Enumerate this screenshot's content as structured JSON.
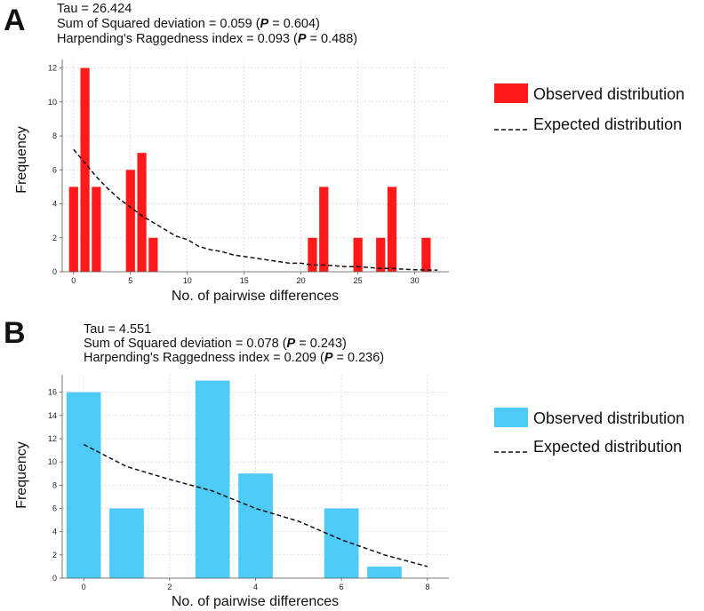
{
  "chart_data": [
    {
      "panel": "A",
      "type": "bar",
      "stats": {
        "tau": "Tau = 26.424",
        "ssd_prefix": "Sum of Squared deviation = 0.059 (",
        "ssd_p": "P",
        "ssd_suffix": " = 0.604)",
        "hri_prefix": "Harpending's Raggedness index = 0.093 (",
        "hri_p": "P",
        "hri_suffix": " = 0.488)"
      },
      "xlabel": "No. of pairwise differences",
      "ylabel": "Frequency",
      "xlim": [
        -1,
        33
      ],
      "ylim": [
        0,
        12.5
      ],
      "xticks": [
        0,
        5,
        10,
        15,
        20,
        25,
        30
      ],
      "yticks": [
        0,
        2,
        4,
        6,
        8,
        10,
        12
      ],
      "bar_width": 0.8,
      "grid": true,
      "color": "#ff1a1a",
      "observed": {
        "x": [
          0,
          1,
          2,
          5,
          6,
          7,
          21,
          22,
          25,
          27,
          28,
          31
        ],
        "y": [
          5,
          12,
          5,
          6,
          7,
          2,
          2,
          5,
          2,
          2,
          5,
          2
        ]
      },
      "expected": {
        "x": [
          0,
          1,
          2,
          3,
          4,
          5,
          6,
          7,
          8,
          9,
          10,
          11,
          12,
          13,
          14,
          15,
          16,
          17,
          18,
          19,
          20,
          21,
          22,
          23,
          24,
          25,
          26,
          27,
          28,
          29,
          30,
          31,
          32
        ],
        "y": [
          7.2,
          6.4,
          5.6,
          4.9,
          4.3,
          3.8,
          3.3,
          2.9,
          2.5,
          2.1,
          1.9,
          1.5,
          1.3,
          1.2,
          1.0,
          0.9,
          0.8,
          0.7,
          0.6,
          0.5,
          0.5,
          0.4,
          0.4,
          0.35,
          0.3,
          0.3,
          0.25,
          0.2,
          0.2,
          0.15,
          0.12,
          0.1,
          0.1
        ]
      },
      "legend": {
        "observed": "Observed distribution",
        "expected": "Expected distribution"
      },
      "legend_position": "right"
    },
    {
      "panel": "B",
      "type": "bar",
      "stats": {
        "tau": "Tau = 4.551",
        "ssd_prefix": "Sum of Squared deviation = 0.078 (",
        "ssd_p": "P",
        "ssd_suffix": " = 0.243)",
        "hri_prefix": "Harpending's Raggedness index = 0.209 (",
        "hri_p": "P",
        "hri_suffix": " = 0.236)"
      },
      "xlabel": "No. of pairwise differences",
      "ylabel": "Frequency",
      "xlim": [
        -0.5,
        8.5
      ],
      "ylim": [
        0,
        17.5
      ],
      "xticks": [
        0,
        2,
        4,
        6,
        8
      ],
      "yticks": [
        0,
        2,
        4,
        6,
        8,
        10,
        12,
        14,
        16
      ],
      "bar_width": 0.8,
      "grid": true,
      "color": "#4dcaf5",
      "observed": {
        "x": [
          0,
          1,
          3,
          4,
          6,
          7
        ],
        "y": [
          16,
          6,
          17,
          9,
          6,
          1
        ]
      },
      "expected": {
        "x": [
          0,
          1,
          2,
          3,
          4,
          5,
          6,
          7,
          8
        ],
        "y": [
          11.5,
          9.6,
          8.5,
          7.5,
          6.0,
          4.9,
          3.3,
          2.0,
          1.0
        ]
      },
      "legend": {
        "observed": "Observed distribution",
        "expected": "Expected distribution"
      },
      "legend_position": "right"
    }
  ]
}
